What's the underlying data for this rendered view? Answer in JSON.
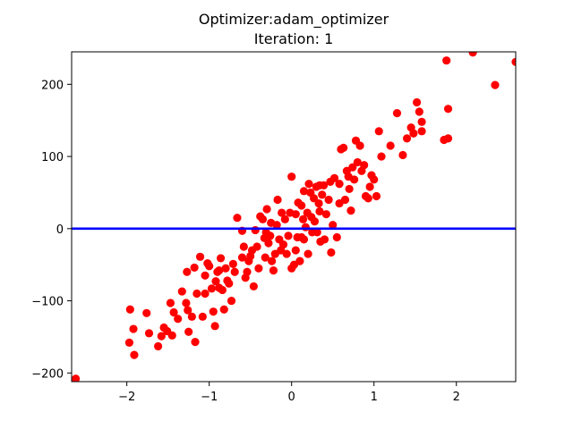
{
  "chart_data": {
    "type": "scatter",
    "title": "Optimizer:adam_optimizer",
    "subtitle": "Iteration: 1",
    "xlabel": "",
    "ylabel": "",
    "xlim": [
      -2.67,
      2.72
    ],
    "ylim": [
      -212,
      245
    ],
    "grid": false,
    "x_ticks": [
      -2,
      -1,
      0,
      1,
      2
    ],
    "y_ticks": [
      -200,
      -100,
      0,
      100,
      200
    ],
    "x_tick_labels": [
      "−2",
      "−1",
      "0",
      "1",
      "2"
    ],
    "y_tick_labels": [
      "−200",
      "−100",
      "0",
      "100",
      "200"
    ],
    "colors": {
      "points": "#ff0000",
      "line": "#0000ff",
      "axes": "#000000"
    },
    "line": {
      "label": "",
      "slope": 0,
      "intercept": 0
    },
    "points": [
      [
        -2.62,
        -208
      ],
      [
        -1.96,
        -112
      ],
      [
        -1.97,
        -158
      ],
      [
        -1.92,
        -139
      ],
      [
        -1.91,
        -175
      ],
      [
        -1.76,
        -117
      ],
      [
        -1.73,
        -145
      ],
      [
        -1.62,
        -163
      ],
      [
        -1.58,
        -149
      ],
      [
        -1.55,
        -137
      ],
      [
        -1.47,
        -103
      ],
      [
        -1.51,
        -142
      ],
      [
        -1.45,
        -148
      ],
      [
        -1.43,
        -116
      ],
      [
        -1.38,
        -125
      ],
      [
        -1.33,
        -87
      ],
      [
        -1.28,
        -103
      ],
      [
        -1.27,
        -60
      ],
      [
        -1.26,
        -113
      ],
      [
        -1.25,
        -143
      ],
      [
        -1.21,
        -122
      ],
      [
        -1.18,
        -54
      ],
      [
        -1.17,
        -157
      ],
      [
        -1.15,
        -90
      ],
      [
        -1.11,
        -39
      ],
      [
        -1.08,
        -122
      ],
      [
        -1.05,
        -65
      ],
      [
        -1.02,
        -48
      ],
      [
        -1.0,
        -52
      ],
      [
        -0.97,
        -83
      ],
      [
        -0.95,
        -115
      ],
      [
        -0.93,
        -135
      ],
      [
        -0.92,
        -73
      ],
      [
        -0.9,
        -60
      ],
      [
        -0.88,
        -82
      ],
      [
        -0.86,
        -41
      ],
      [
        -0.84,
        -85
      ],
      [
        -0.82,
        -112
      ],
      [
        -0.8,
        -55
      ],
      [
        -0.78,
        -72
      ],
      [
        -0.76,
        -76
      ],
      [
        -0.73,
        -100
      ],
      [
        -0.71,
        -49
      ],
      [
        -0.69,
        -60
      ],
      [
        -0.66,
        15
      ],
      [
        -0.6,
        -3
      ],
      [
        -0.58,
        -25
      ],
      [
        -0.56,
        -68
      ],
      [
        -0.54,
        -60
      ],
      [
        -0.52,
        -45
      ],
      [
        -0.5,
        -38
      ],
      [
        -0.48,
        -30
      ],
      [
        -0.46,
        -80
      ],
      [
        -0.44,
        -2
      ],
      [
        -0.42,
        -25
      ],
      [
        -0.4,
        -55
      ],
      [
        -0.38,
        17
      ],
      [
        -0.35,
        13
      ],
      [
        -0.33,
        -13
      ],
      [
        -0.31,
        -5
      ],
      [
        -0.3,
        27
      ],
      [
        -0.28,
        -20
      ],
      [
        -0.26,
        -10
      ],
      [
        -0.24,
        -45
      ],
      [
        -0.22,
        -58
      ],
      [
        -0.2,
        -35
      ],
      [
        -0.18,
        5
      ],
      [
        -0.17,
        40
      ],
      [
        -0.15,
        -15
      ],
      [
        -0.13,
        -30
      ],
      [
        -0.12,
        22
      ],
      [
        -0.1,
        -22
      ],
      [
        -0.08,
        13
      ],
      [
        -0.06,
        -35
      ],
      [
        -0.04,
        -10
      ],
      [
        -0.02,
        22
      ],
      [
        0.0,
        -55
      ],
      [
        0.0,
        72
      ],
      [
        0.03,
        -50
      ],
      [
        0.05,
        20
      ],
      [
        0.07,
        -12
      ],
      [
        0.08,
        36
      ],
      [
        0.1,
        -45
      ],
      [
        0.12,
        32
      ],
      [
        0.14,
        13
      ],
      [
        0.15,
        -15
      ],
      [
        0.17,
        2
      ],
      [
        0.19,
        22
      ],
      [
        0.2,
        -35
      ],
      [
        0.21,
        62
      ],
      [
        0.23,
        50
      ],
      [
        0.24,
        16
      ],
      [
        0.25,
        -5
      ],
      [
        0.27,
        42
      ],
      [
        0.28,
        10
      ],
      [
        0.3,
        58
      ],
      [
        0.31,
        -5
      ],
      [
        0.33,
        35
      ],
      [
        0.34,
        24
      ],
      [
        0.35,
        -18
      ],
      [
        0.37,
        47
      ],
      [
        0.39,
        60
      ],
      [
        0.4,
        -15
      ],
      [
        0.42,
        20
      ],
      [
        0.45,
        40
      ],
      [
        0.47,
        65
      ],
      [
        0.48,
        -33
      ],
      [
        0.5,
        5
      ],
      [
        0.52,
        70
      ],
      [
        0.55,
        -12
      ],
      [
        0.58,
        62
      ],
      [
        0.6,
        110
      ],
      [
        0.63,
        112
      ],
      [
        0.65,
        40
      ],
      [
        0.67,
        80
      ],
      [
        0.7,
        55
      ],
      [
        0.72,
        25
      ],
      [
        0.74,
        85
      ],
      [
        0.76,
        68
      ],
      [
        0.78,
        122
      ],
      [
        0.8,
        92
      ],
      [
        0.83,
        115
      ],
      [
        0.85,
        80
      ],
      [
        0.88,
        88
      ],
      [
        0.9,
        45
      ],
      [
        0.93,
        42
      ],
      [
        0.95,
        58
      ],
      [
        0.97,
        74
      ],
      [
        1.0,
        68
      ],
      [
        1.03,
        45
      ],
      [
        1.06,
        135
      ],
      [
        1.09,
        100
      ],
      [
        1.2,
        115
      ],
      [
        1.28,
        160
      ],
      [
        1.35,
        102
      ],
      [
        1.4,
        125
      ],
      [
        1.45,
        140
      ],
      [
        1.48,
        132
      ],
      [
        1.52,
        175
      ],
      [
        1.55,
        162
      ],
      [
        1.58,
        148
      ],
      [
        1.58,
        135
      ],
      [
        1.85,
        123
      ],
      [
        1.9,
        125
      ],
      [
        1.88,
        233
      ],
      [
        1.9,
        166
      ],
      [
        2.2,
        244
      ],
      [
        2.47,
        199
      ],
      [
        2.72,
        231
      ],
      [
        -0.25,
        8
      ],
      [
        0.05,
        -30
      ],
      [
        0.12,
        -12
      ],
      [
        0.34,
        60
      ],
      [
        0.58,
        35
      ],
      [
        0.69,
        72
      ],
      [
        -0.88,
        -58
      ],
      [
        -1.05,
        -90
      ],
      [
        -0.6,
        -40
      ],
      [
        0.15,
        52
      ],
      [
        -0.32,
        -40
      ]
    ]
  }
}
